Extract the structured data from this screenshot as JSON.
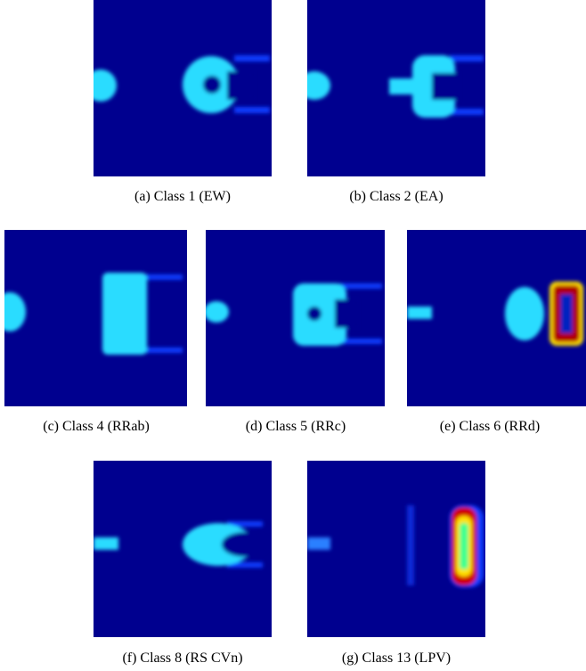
{
  "figure": {
    "panels": [
      {
        "caption": "(a) Class 1 (EW)"
      },
      {
        "caption": "(b) Class 2 (EA)"
      },
      {
        "caption": "(c) Class 4 (RRab)"
      },
      {
        "caption": "(d) Class 5 (RRc)"
      },
      {
        "caption": "(e) Class 6 (RRd)"
      },
      {
        "caption": "(f) Class 8 (RS CVn)"
      },
      {
        "caption": "(g) Class 13 (LPV)"
      }
    ]
  }
}
